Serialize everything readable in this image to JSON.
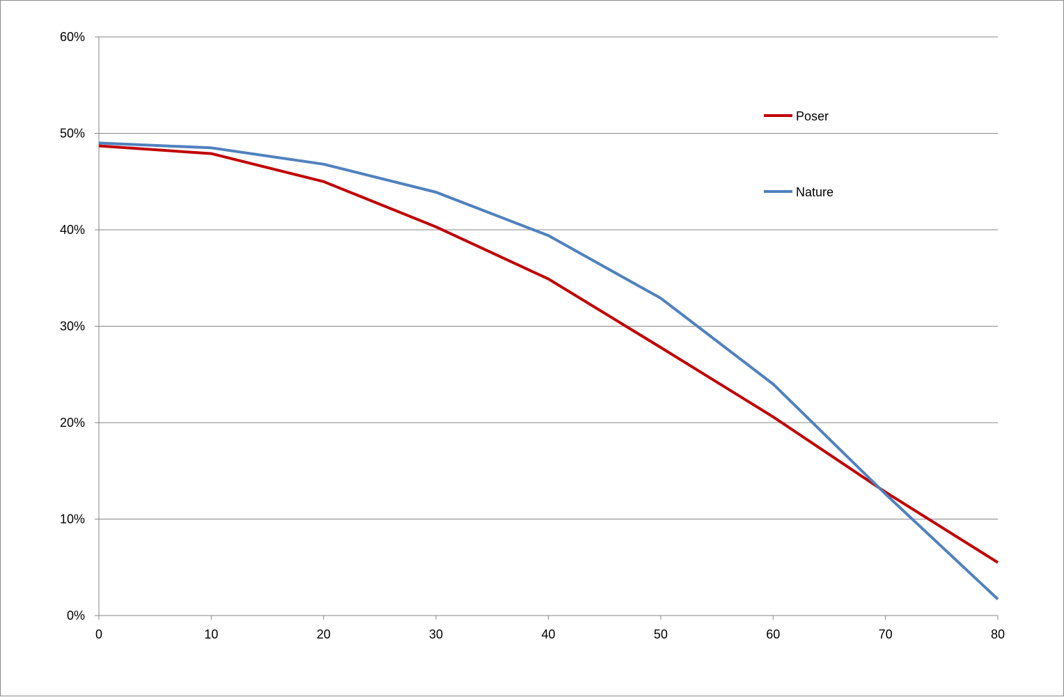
{
  "chart_data": {
    "type": "line",
    "title": "",
    "xlabel": "",
    "ylabel": "",
    "x": [
      0,
      10,
      20,
      30,
      40,
      50,
      60,
      70,
      80
    ],
    "xlim": [
      0,
      80
    ],
    "ylim": [
      0,
      0.6
    ],
    "x_ticks": [
      "0",
      "10",
      "20",
      "30",
      "40",
      "50",
      "60",
      "70",
      "80"
    ],
    "y_ticks": [
      "0%",
      "10%",
      "20%",
      "30%",
      "40%",
      "50%",
      "60%"
    ],
    "y_tick_values": [
      0,
      0.1,
      0.2,
      0.3,
      0.4,
      0.5,
      0.6
    ],
    "grid": "horizontal",
    "legend_position": "top-right",
    "series": [
      {
        "name": "Poser",
        "color": "#c00000",
        "values": [
          0.487,
          0.479,
          0.45,
          0.403,
          0.349,
          0.278,
          0.206,
          0.128,
          0.055
        ]
      },
      {
        "name": "Nature",
        "color": "#4f81bd",
        "values": [
          0.49,
          0.485,
          0.468,
          0.439,
          0.394,
          0.329,
          0.24,
          0.126,
          0.017
        ]
      }
    ]
  }
}
